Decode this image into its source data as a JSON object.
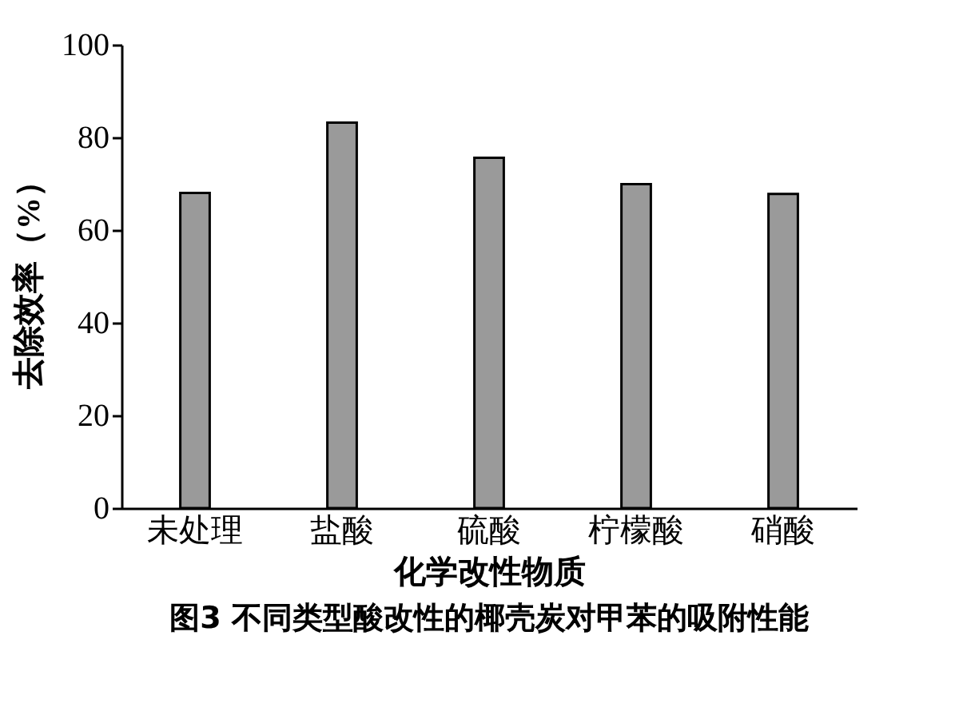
{
  "chart_data": {
    "type": "bar",
    "title": "图3  不同类型酸改性的椰壳炭对甲苯的吸附性能",
    "xlabel": "化学改性物质",
    "ylabel": "去除效率（%）",
    "categories": [
      "未处理",
      "盐酸",
      "硫酸",
      "柠檬酸",
      "硝酸"
    ],
    "values": [
      68.0,
      83.2,
      75.6,
      69.9,
      67.8
    ],
    "color": "#9a9a9a",
    "ylim": [
      0,
      100
    ],
    "yticks": [
      0,
      20,
      40,
      60,
      80,
      100
    ]
  }
}
